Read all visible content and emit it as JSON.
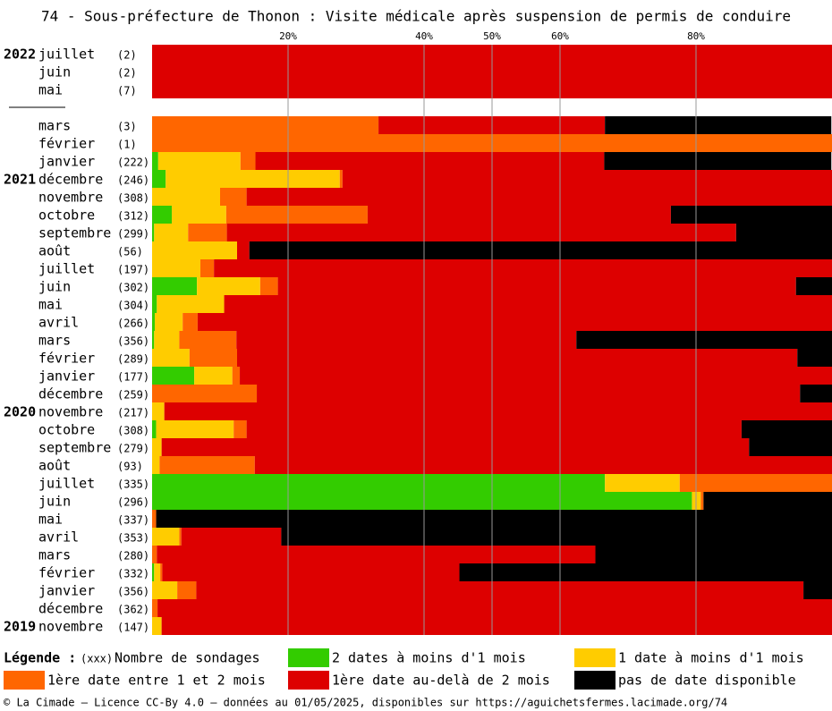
{
  "chart_data": {
    "type": "stacked-barh",
    "title": "74 - Sous-préfecture de Thonon : Visite médicale après suspension de permis de conduire",
    "years": [
      "2022",
      null,
      null,
      null,
      null,
      null,
      null,
      "2021",
      null,
      null,
      null,
      null,
      null,
      null,
      null,
      null,
      null,
      null,
      null,
      null,
      "2020",
      null,
      null,
      null,
      null,
      null,
      null,
      null,
      null,
      null,
      null,
      null,
      "2019",
      null
    ],
    "categories": [
      "juillet",
      "juin",
      "mai",
      null,
      "mars",
      "février",
      "janvier",
      "décembre",
      "novembre",
      "octobre",
      "septembre",
      "août",
      "juillet",
      "juin",
      "mai",
      "avril",
      "mars",
      "février",
      "janvier",
      "décembre",
      "novembre",
      "octobre",
      "septembre",
      "août",
      "juillet",
      "juin",
      "mai",
      "avril",
      "mars",
      "février",
      "janvier",
      "décembre",
      "novembre"
    ],
    "sample_sizes": [
      "(2)",
      "(2)",
      "(7)",
      null,
      "(3)",
      "(1)",
      "(222)",
      "(246)",
      "(308)",
      "(312)",
      "(299)",
      "(56)",
      "(197)",
      "(302)",
      "(304)",
      "(266)",
      "(356)",
      "(289)",
      "(177)",
      "(259)",
      "(217)",
      "(308)",
      "(279)",
      "(93)",
      "(335)",
      "(296)",
      "(337)",
      "(353)",
      "(280)",
      "(332)",
      "(356)",
      "(362)",
      "(147)"
    ],
    "series": [
      {
        "name": "2 dates à moins d'1 mois",
        "color": "#33cc00",
        "values": [
          0,
          0,
          0,
          null,
          0,
          0,
          0.9,
          2.0,
          0,
          2.9,
          0.3,
          0,
          0,
          6.6,
          0.7,
          0.4,
          0.3,
          0,
          6.2,
          0,
          0,
          0.6,
          0,
          0,
          66.6,
          79.4,
          0,
          0,
          0,
          0.3,
          0,
          0,
          0
        ]
      },
      {
        "name": "1 date à moins d'1 mois",
        "color": "#ffcc00",
        "values": [
          0,
          0,
          0,
          null,
          0,
          0,
          12.1,
          25.6,
          10.0,
          8.0,
          5.0,
          12.5,
          7.1,
          9.3,
          9.9,
          4.1,
          3.7,
          5.5,
          5.6,
          0,
          1.8,
          11.4,
          1.4,
          1.1,
          11.0,
          1.3,
          0,
          4.0,
          0,
          0.9,
          3.7,
          0,
          1.4
        ]
      },
      {
        "name": "1ère date entre 1 et 2 mois",
        "color": "#ff6600",
        "values": [
          0,
          0,
          0,
          null,
          33.3,
          100,
          2.2,
          0.4,
          3.9,
          20.8,
          5.7,
          0,
          2.0,
          2.6,
          0,
          2.2,
          8.4,
          7.0,
          1.1,
          15.4,
          0,
          1.9,
          0,
          14.0,
          22.4,
          0.4,
          0.6,
          0.3,
          0.7,
          0.3,
          2.8,
          0.8,
          0
        ]
      },
      {
        "name": "1ère date au-delà de 2 mois",
        "color": "#dd0000",
        "values": [
          100,
          100,
          100,
          null,
          33.3,
          0,
          51.3,
          72.0,
          86.1,
          44.6,
          74.9,
          1.8,
          90.9,
          76.2,
          89.4,
          93.3,
          50.0,
          82.4,
          87.1,
          79.9,
          98.2,
          72.8,
          86.4,
          84.9,
          0,
          0,
          0,
          14.7,
          64.5,
          43.7,
          89.3,
          99.2,
          98.6
        ]
      },
      {
        "name": "pas de date disponible",
        "color": "#000000",
        "values": [
          0,
          0,
          0,
          null,
          33.3,
          0,
          33.4,
          0,
          0,
          23.7,
          14.1,
          85.7,
          0,
          5.3,
          0,
          0,
          37.6,
          5.1,
          0,
          4.7,
          0,
          13.3,
          12.2,
          0,
          0,
          18.9,
          99.4,
          81.0,
          34.8,
          54.8,
          4.2,
          0,
          0
        ]
      }
    ],
    "xlim": [
      0,
      100
    ],
    "xticks": [
      {
        "value": 20,
        "label": "20%"
      },
      {
        "value": 40,
        "label": "40%"
      },
      {
        "value": 50,
        "label": "50%"
      },
      {
        "value": 60,
        "label": "60%"
      },
      {
        "value": 80,
        "label": "80%"
      }
    ],
    "grid": true,
    "legend_title": "Légende :",
    "count_key": "(xxx)",
    "count_key_label": "Nombre de sondages",
    "footer": "© La Cimade – Licence CC-By 4.0 – données au 01/05/2025, disponibles sur https://aguichetsfermes.lacimade.org/74"
  }
}
